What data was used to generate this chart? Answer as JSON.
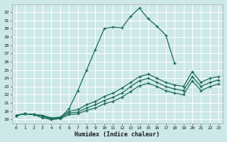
{
  "xlabel": "Humidex (Indice chaleur)",
  "background_color": "#cde8e8",
  "grid_color": "#b8d8d8",
  "line_color": "#1a6b5a",
  "xlim": [
    -0.5,
    23.5
  ],
  "ylim": [
    18.5,
    33.0
  ],
  "xticks": [
    0,
    1,
    2,
    3,
    4,
    5,
    6,
    7,
    8,
    9,
    10,
    11,
    12,
    13,
    14,
    15,
    16,
    17,
    18,
    19,
    20,
    21,
    22,
    23
  ],
  "yticks": [
    19,
    20,
    21,
    22,
    23,
    24,
    25,
    26,
    27,
    28,
    29,
    30,
    31,
    32
  ],
  "curves": [
    {
      "x": [
        0,
        1,
        2,
        3,
        4,
        5,
        6,
        7,
        8,
        9,
        10,
        11,
        12,
        13,
        14,
        15,
        16,
        17,
        18
      ],
      "y": [
        19.5,
        19.7,
        19.6,
        19.2,
        19.0,
        19.2,
        20.3,
        22.5,
        25.0,
        27.5,
        30.0,
        30.2,
        30.1,
        31.5,
        32.5,
        31.2,
        30.3,
        29.2,
        25.8
      ]
    },
    {
      "x": [
        0,
        1,
        2,
        3,
        4,
        5,
        6,
        7,
        8,
        9,
        10,
        11,
        12,
        13,
        14,
        15,
        16,
        17,
        18,
        19,
        20,
        21,
        22,
        23
      ],
      "y": [
        19.5,
        19.7,
        19.6,
        19.5,
        19.2,
        19.3,
        20.0,
        20.2,
        20.8,
        21.2,
        21.8,
        22.2,
        22.8,
        23.5,
        24.2,
        24.5,
        24.0,
        23.5,
        23.2,
        23.0,
        24.8,
        23.5,
        24.0,
        24.2
      ]
    },
    {
      "x": [
        0,
        1,
        2,
        3,
        4,
        5,
        6,
        7,
        8,
        9,
        10,
        11,
        12,
        13,
        14,
        15,
        16,
        17,
        18,
        19,
        20,
        21,
        22,
        23
      ],
      "y": [
        19.5,
        19.7,
        19.6,
        19.5,
        19.1,
        19.2,
        19.8,
        19.9,
        20.4,
        20.8,
        21.3,
        21.7,
        22.2,
        23.0,
        23.7,
        24.0,
        23.5,
        23.0,
        22.7,
        22.5,
        24.2,
        23.0,
        23.5,
        23.8
      ]
    },
    {
      "x": [
        0,
        1,
        2,
        3,
        4,
        5,
        6,
        7,
        8,
        9,
        10,
        11,
        12,
        13,
        14,
        15,
        16,
        17,
        18,
        19,
        20,
        21,
        22,
        23
      ],
      "y": [
        19.5,
        19.7,
        19.6,
        19.4,
        19.0,
        19.1,
        19.6,
        19.7,
        20.1,
        20.4,
        20.9,
        21.2,
        21.7,
        22.4,
        23.1,
        23.4,
        23.0,
        22.5,
        22.2,
        22.0,
        23.7,
        22.5,
        23.0,
        23.3
      ]
    }
  ]
}
